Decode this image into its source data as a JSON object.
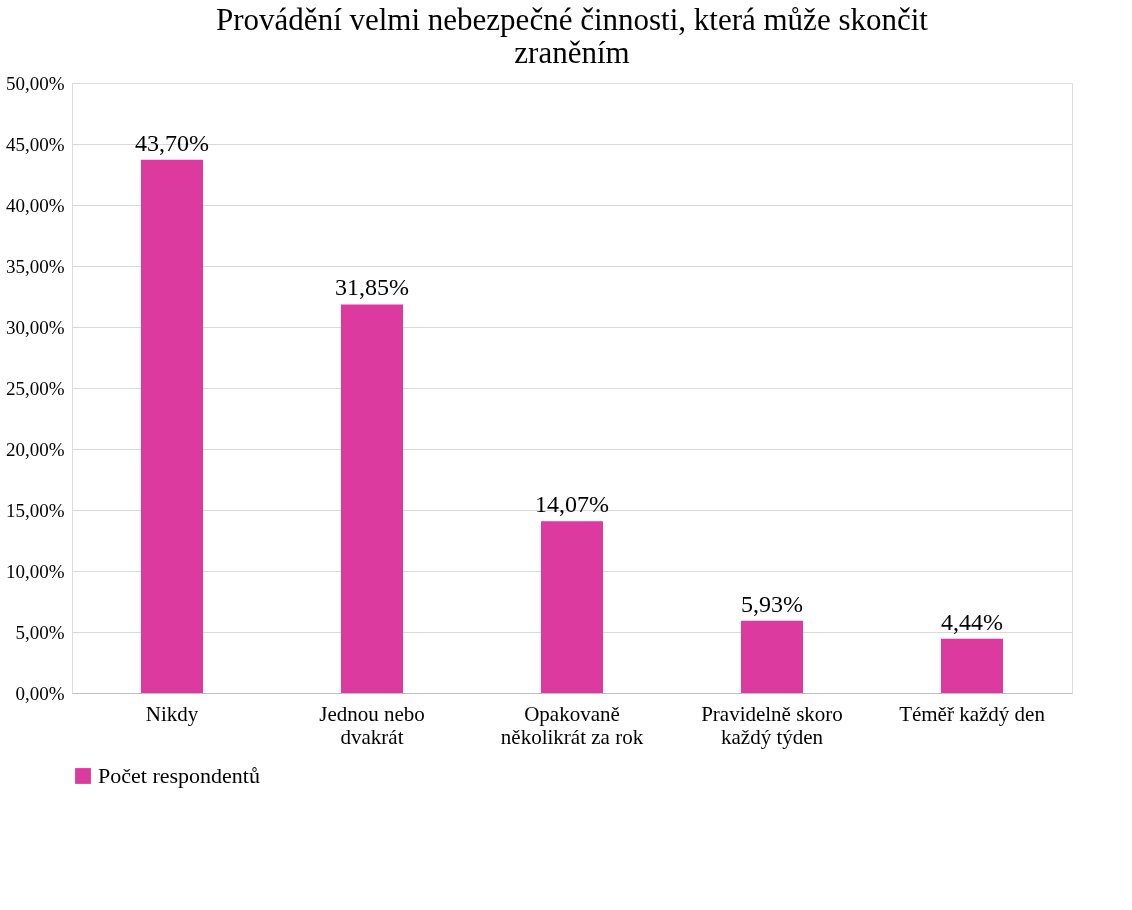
{
  "chart_data": {
    "type": "bar",
    "title": "Provádění velmi nebezpečné činnosti, která může skončit zraněním",
    "categories": [
      "Nikdy",
      "Jednou nebo dvakrát",
      "Opakovaně několikrát za rok",
      "Pravidelně skoro každý týden",
      "Téměř každý den"
    ],
    "series": [
      {
        "name": "Počet respondentů",
        "color": "#dc3a9f",
        "values": [
          43.7,
          31.85,
          14.07,
          5.93,
          4.44
        ]
      }
    ],
    "value_labels": [
      "43,70%",
      "31,85%",
      "14,07%",
      "5,93%",
      "4,44%"
    ],
    "ylim": [
      0,
      50
    ],
    "yticks": [
      {
        "value": 0,
        "label": "0,00%"
      },
      {
        "value": 5,
        "label": "5,00%"
      },
      {
        "value": 10,
        "label": "10,00%"
      },
      {
        "value": 15,
        "label": "15,00%"
      },
      {
        "value": 20,
        "label": "20,00%"
      },
      {
        "value": 25,
        "label": "25,00%"
      },
      {
        "value": 30,
        "label": "30,00%"
      },
      {
        "value": 35,
        "label": "35,00%"
      },
      {
        "value": 40,
        "label": "40,00%"
      },
      {
        "value": 45,
        "label": "45,00%"
      },
      {
        "value": 50,
        "label": "50,00%"
      }
    ],
    "grid": "y",
    "legend": "bottom"
  }
}
